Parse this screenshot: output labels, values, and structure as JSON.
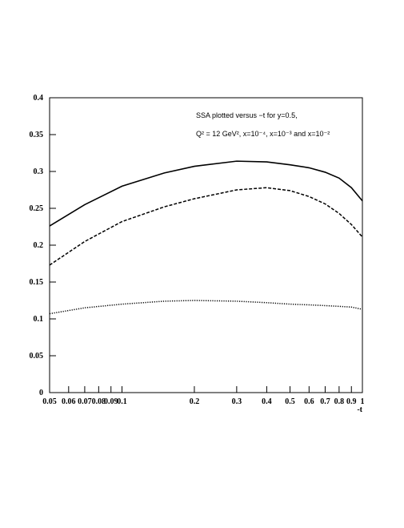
{
  "chart_data": {
    "type": "line",
    "annotations": [
      "SSA plotted versus −t for y=0.5,",
      "Q² = 12 GeV², x=10⁻⁴, x=10⁻³ and x=10⁻²"
    ],
    "x_label": "-t",
    "x_scale": "log",
    "x": [
      0.05,
      0.07,
      0.1,
      0.15,
      0.2,
      0.3,
      0.4,
      0.5,
      0.6,
      0.7,
      0.8,
      0.9,
      1
    ],
    "series": [
      {
        "color": "#000000",
        "dash": "solid",
        "values": [
          0.226,
          0.255,
          0.28,
          0.298,
          0.307,
          0.314,
          0.313,
          0.309,
          0.305,
          0.299,
          0.291,
          0.278,
          0.26
        ]
      },
      {
        "color": "#000000",
        "dash": "dashed",
        "values": [
          0.173,
          0.205,
          0.232,
          0.252,
          0.263,
          0.275,
          0.278,
          0.274,
          0.266,
          0.256,
          0.243,
          0.228,
          0.211
        ]
      },
      {
        "color": "#000000",
        "dash": "dotted",
        "values": [
          0.107,
          0.115,
          0.12,
          0.124,
          0.125,
          0.124,
          0.122,
          0.12,
          0.119,
          0.118,
          0.117,
          0.116,
          0.113
        ]
      }
    ],
    "xlim": [
      0.05,
      1
    ],
    "xticks": [
      0.05,
      0.06,
      0.07,
      0.08,
      0.09,
      0.1,
      0.2,
      0.3,
      0.4,
      0.5,
      0.6,
      0.7,
      0.8,
      0.9,
      1
    ],
    "ylim": [
      0,
      0.4
    ],
    "yticks": [
      0,
      0.05,
      0.1,
      0.15,
      0.2,
      0.25,
      0.3,
      0.35,
      0.4
    ],
    "grid": false
  }
}
